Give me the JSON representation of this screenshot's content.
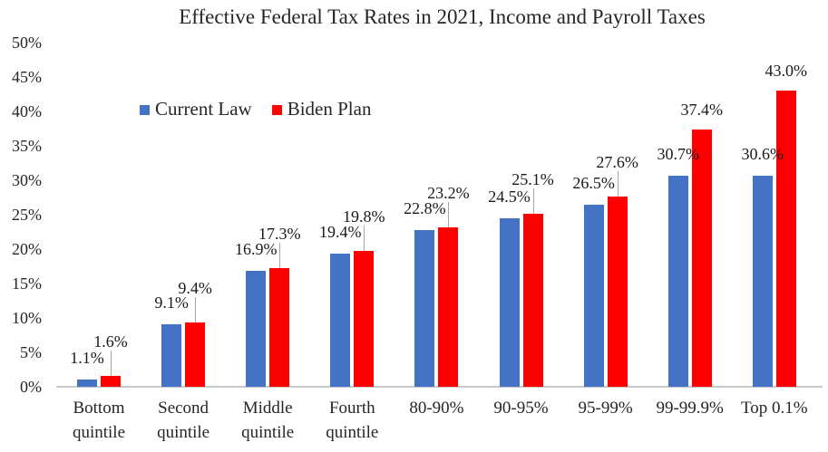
{
  "title": "Effective Federal Tax Rates in 2021, Income and Payroll Taxes",
  "legend": {
    "items": [
      {
        "label": "Current Law",
        "color": "#4472c4"
      },
      {
        "label": "Biden Plan",
        "color": "#ff0000"
      }
    ]
  },
  "colors": {
    "current_law": "#4472c4",
    "biden_plan": "#ff0000",
    "axis_line": "#c9c9c9",
    "leader_line": "#a6a6a6",
    "text": "#262626"
  },
  "chart_data": {
    "type": "bar",
    "title": "Effective Federal Tax Rates in 2021, Income and Payroll Taxes",
    "categories": [
      "Bottom quintile",
      "Second quintile",
      "Middle quintile",
      "Fourth quintile",
      "80-90%",
      "90-95%",
      "95-99%",
      "99-99.9%",
      "Top 0.1%"
    ],
    "series": [
      {
        "name": "Current Law",
        "color": "#4472c4",
        "values": [
          1.1,
          9.1,
          16.9,
          19.4,
          22.8,
          24.5,
          26.5,
          30.7,
          30.6
        ]
      },
      {
        "name": "Biden Plan",
        "color": "#ff0000",
        "values": [
          1.6,
          9.4,
          17.3,
          19.8,
          23.2,
          25.1,
          27.6,
          37.4,
          43.0
        ]
      }
    ],
    "value_suffix": "%",
    "xlabel": "",
    "ylabel": "",
    "ylim": [
      0,
      50
    ],
    "y_ticks": [
      "0%",
      "5%",
      "10%",
      "15%",
      "20%",
      "25%",
      "30%",
      "35%",
      "40%",
      "45%",
      "50%"
    ],
    "grid": false,
    "data_labels": true,
    "legend_position": "inside-top-left",
    "leader_line_categories": [
      0,
      1,
      2,
      3,
      4,
      5,
      6
    ]
  }
}
